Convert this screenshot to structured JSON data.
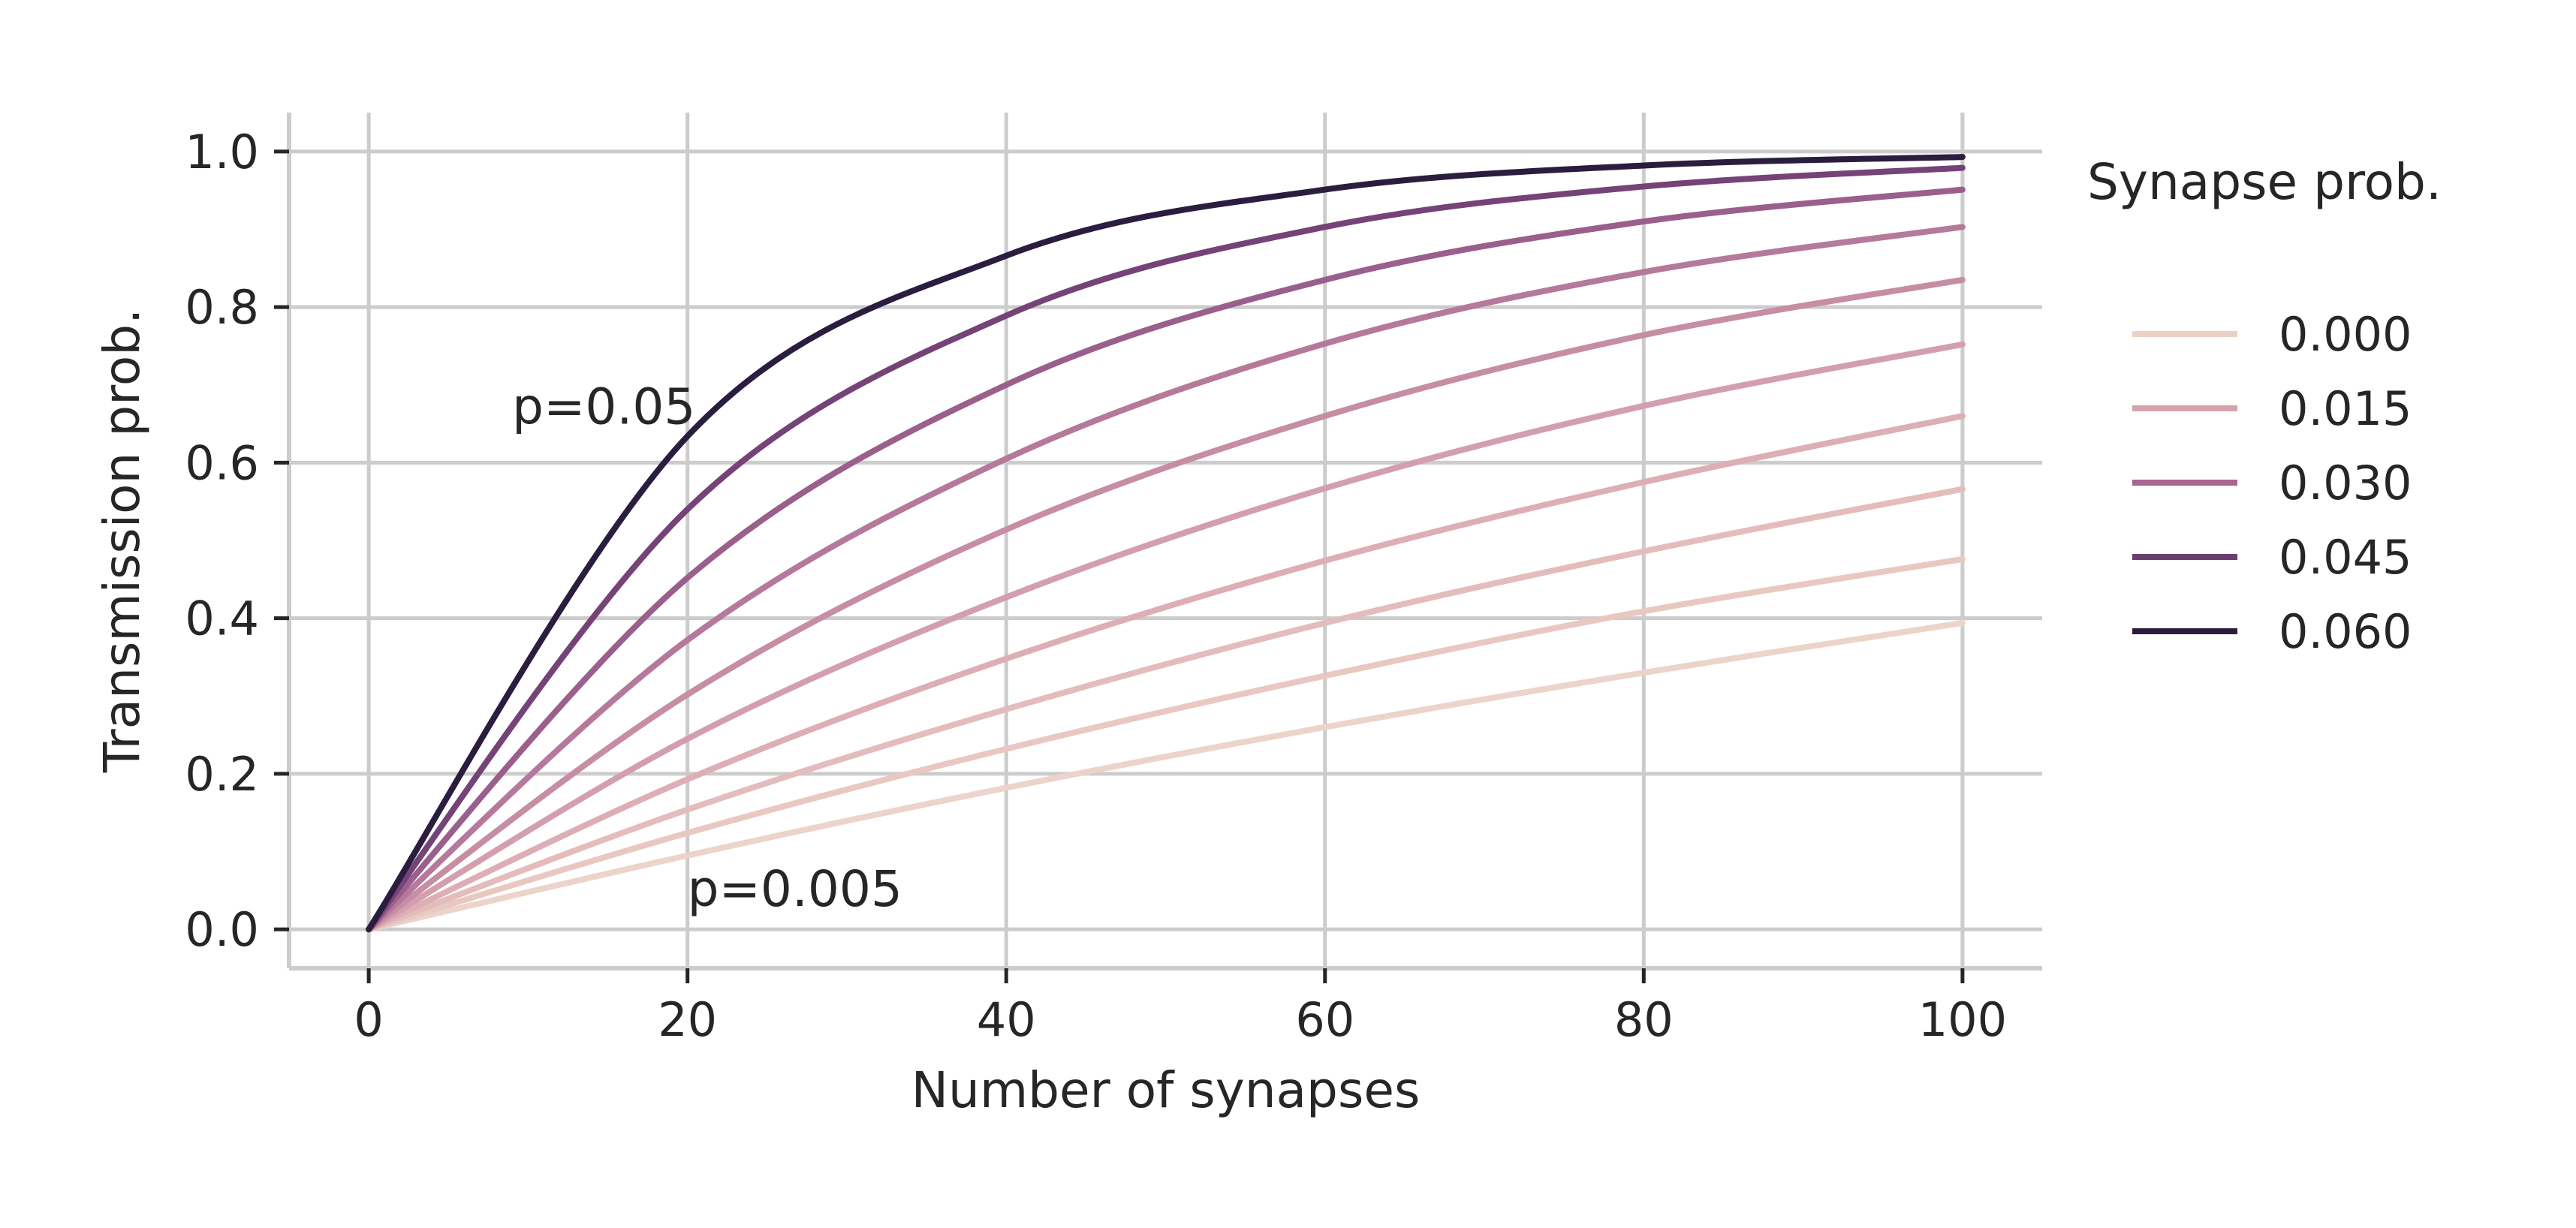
{
  "chart_data": {
    "type": "line",
    "xlabel": "Number of synapses",
    "ylabel": "Transmission prob.",
    "xlim": [
      -5,
      105
    ],
    "ylim": [
      -0.05,
      1.05
    ],
    "xticks": [
      0,
      20,
      40,
      60,
      80,
      100
    ],
    "yticks": [
      0.0,
      0.2,
      0.4,
      0.6,
      0.8,
      1.0
    ],
    "xtick_labels": [
      "0",
      "20",
      "40",
      "60",
      "80",
      "100"
    ],
    "ytick_labels": [
      "0.0",
      "0.2",
      "0.4",
      "0.6",
      "0.8",
      "1.0"
    ],
    "grid": true,
    "legend": {
      "title": "Synapse prob.",
      "placement": "outside right",
      "entries": [
        {
          "label": "0.000",
          "color": "#ecd0c6"
        },
        {
          "label": "0.015",
          "color": "#d7a0ad"
        },
        {
          "label": "0.030",
          "color": "#a9648f"
        },
        {
          "label": "0.045",
          "color": "#6a3f70"
        },
        {
          "label": "0.060",
          "color": "#2b1d3f"
        }
      ]
    },
    "series": [
      {
        "p": 0.005,
        "color": "#ecd4cb",
        "x": [
          0,
          20,
          40,
          60,
          80,
          100
        ],
        "y": [
          0,
          0.095,
          0.182,
          0.26,
          0.33,
          0.394
        ]
      },
      {
        "p": 0.01,
        "color": "#e9c8c1",
        "x": [
          0,
          20,
          40,
          60,
          80,
          100
        ],
        "y": [
          0,
          0.124,
          0.232,
          0.326,
          0.409,
          0.476
        ]
      },
      {
        "p": 0.015,
        "color": "#e4bcbc",
        "x": [
          0,
          20,
          40,
          60,
          80,
          100
        ],
        "y": [
          0,
          0.154,
          0.283,
          0.394,
          0.486,
          0.566
        ]
      },
      {
        "p": 0.02,
        "color": "#ddaeb5",
        "x": [
          0,
          20,
          40,
          60,
          80,
          100
        ],
        "y": [
          0,
          0.193,
          0.348,
          0.474,
          0.575,
          0.66
        ]
      },
      {
        "p": 0.025,
        "color": "#d39fae",
        "x": [
          0,
          20,
          40,
          60,
          80,
          100
        ],
        "y": [
          0,
          0.245,
          0.427,
          0.567,
          0.673,
          0.752
        ]
      },
      {
        "p": 0.03,
        "color": "#c68da5",
        "x": [
          0,
          20,
          40,
          60,
          80,
          100
        ],
        "y": [
          0,
          0.302,
          0.514,
          0.66,
          0.764,
          0.835
        ]
      },
      {
        "p": 0.035,
        "color": "#b5799b",
        "x": [
          0,
          20,
          40,
          60,
          80,
          100
        ],
        "y": [
          0,
          0.372,
          0.605,
          0.753,
          0.845,
          0.903
        ]
      },
      {
        "p": 0.04,
        "color": "#9a5f8c",
        "x": [
          0,
          20,
          40,
          60,
          80,
          100
        ],
        "y": [
          0,
          0.452,
          0.7,
          0.835,
          0.91,
          0.951
        ]
      },
      {
        "p": 0.045,
        "color": "#754377",
        "x": [
          0,
          20,
          40,
          60,
          80,
          100
        ],
        "y": [
          0,
          0.54,
          0.789,
          0.903,
          0.955,
          0.979
        ]
      },
      {
        "p": 0.05,
        "color": "#2b1d3f",
        "x": [
          0,
          20,
          40,
          60,
          80,
          100
        ],
        "y": [
          0,
          0.634,
          0.866,
          0.951,
          0.982,
          0.993
        ]
      }
    ],
    "annotations": [
      {
        "text": "p=0.05",
        "x": 9,
        "y": 0.65
      },
      {
        "text": "p=0.005",
        "x": 20,
        "y": 0.03
      }
    ]
  }
}
